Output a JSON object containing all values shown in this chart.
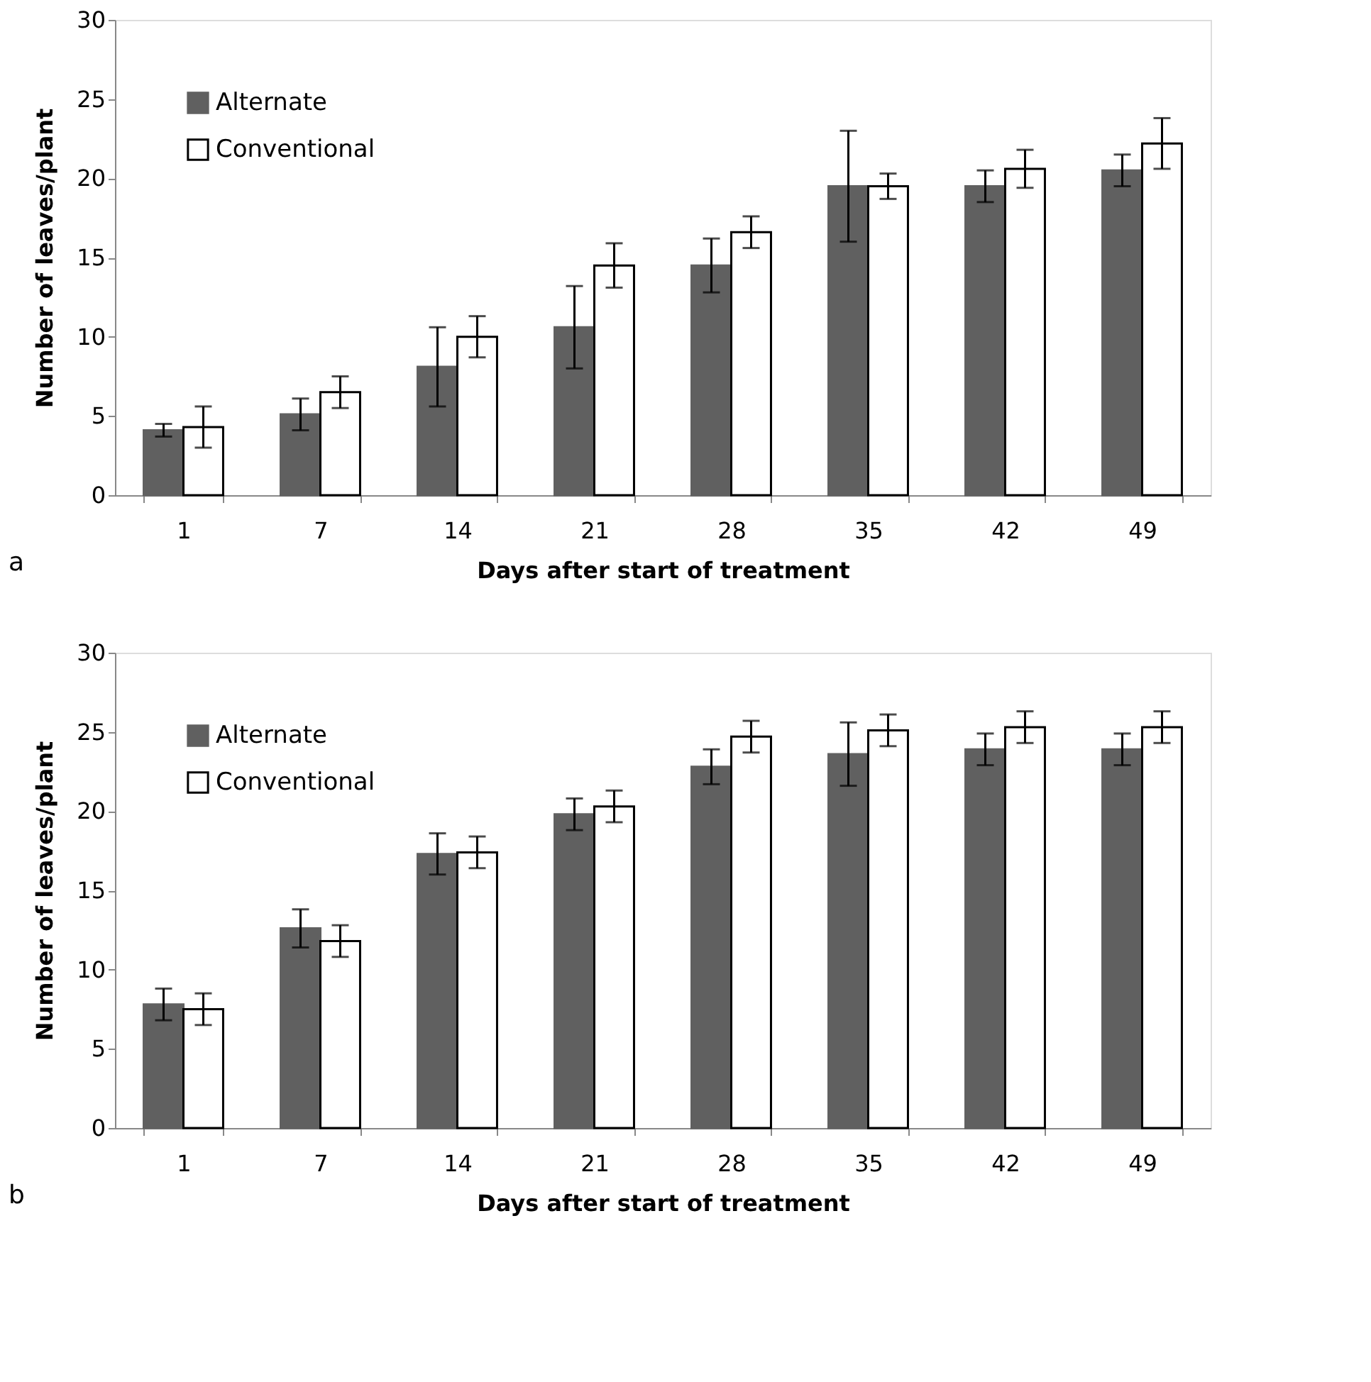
{
  "chart_data": [
    {
      "type": "bar",
      "xlabel": "Days after start of treatment",
      "ylabel": "Number of  leaves/plant",
      "categories": [
        "1",
        "7",
        "14",
        "21",
        "28",
        "35",
        "42",
        "49"
      ],
      "ylim": [
        0,
        30
      ],
      "yticks": [
        0,
        5,
        10,
        15,
        20,
        25,
        30
      ],
      "grid": false,
      "legend": "top left",
      "annotations": [
        "a"
      ],
      "series": [
        {
          "name": "Alternate",
          "color": "#606060",
          "values": [
            4.1,
            5.1,
            8.1,
            10.6,
            14.5,
            19.5,
            19.5,
            20.5
          ],
          "errors": [
            0.4,
            1.0,
            2.5,
            2.6,
            1.7,
            3.5,
            1.0,
            1.0
          ]
        },
        {
          "name": "Conventional",
          "color": "#ffffff",
          "values": [
            4.3,
            6.5,
            10.0,
            14.5,
            16.6,
            19.5,
            20.6,
            22.2
          ],
          "errors": [
            1.3,
            1.0,
            1.3,
            1.4,
            1.0,
            0.8,
            1.2,
            1.6
          ]
        }
      ]
    },
    {
      "type": "bar",
      "xlabel": "Days after start of treatment",
      "ylabel": "Number of leaves/plant",
      "categories": [
        "1",
        "7",
        "14",
        "21",
        "28",
        "35",
        "42",
        "49"
      ],
      "ylim": [
        0,
        30
      ],
      "yticks": [
        0,
        5,
        10,
        15,
        20,
        25,
        30
      ],
      "grid": false,
      "legend": "top left",
      "annotations": [
        "b"
      ],
      "series": [
        {
          "name": "Alternate",
          "color": "#606060",
          "values": [
            7.8,
            12.6,
            17.3,
            19.8,
            22.8,
            23.6,
            23.9,
            23.9
          ],
          "errors": [
            1.0,
            1.2,
            1.3,
            1.0,
            1.1,
            2.0,
            1.0,
            1.0
          ]
        },
        {
          "name": "Conventional",
          "color": "#ffffff",
          "values": [
            7.5,
            11.8,
            17.4,
            20.3,
            24.7,
            25.1,
            25.3,
            25.3
          ],
          "errors": [
            1.0,
            1.0,
            1.0,
            1.0,
            1.0,
            1.0,
            1.0,
            1.0
          ]
        }
      ]
    }
  ]
}
